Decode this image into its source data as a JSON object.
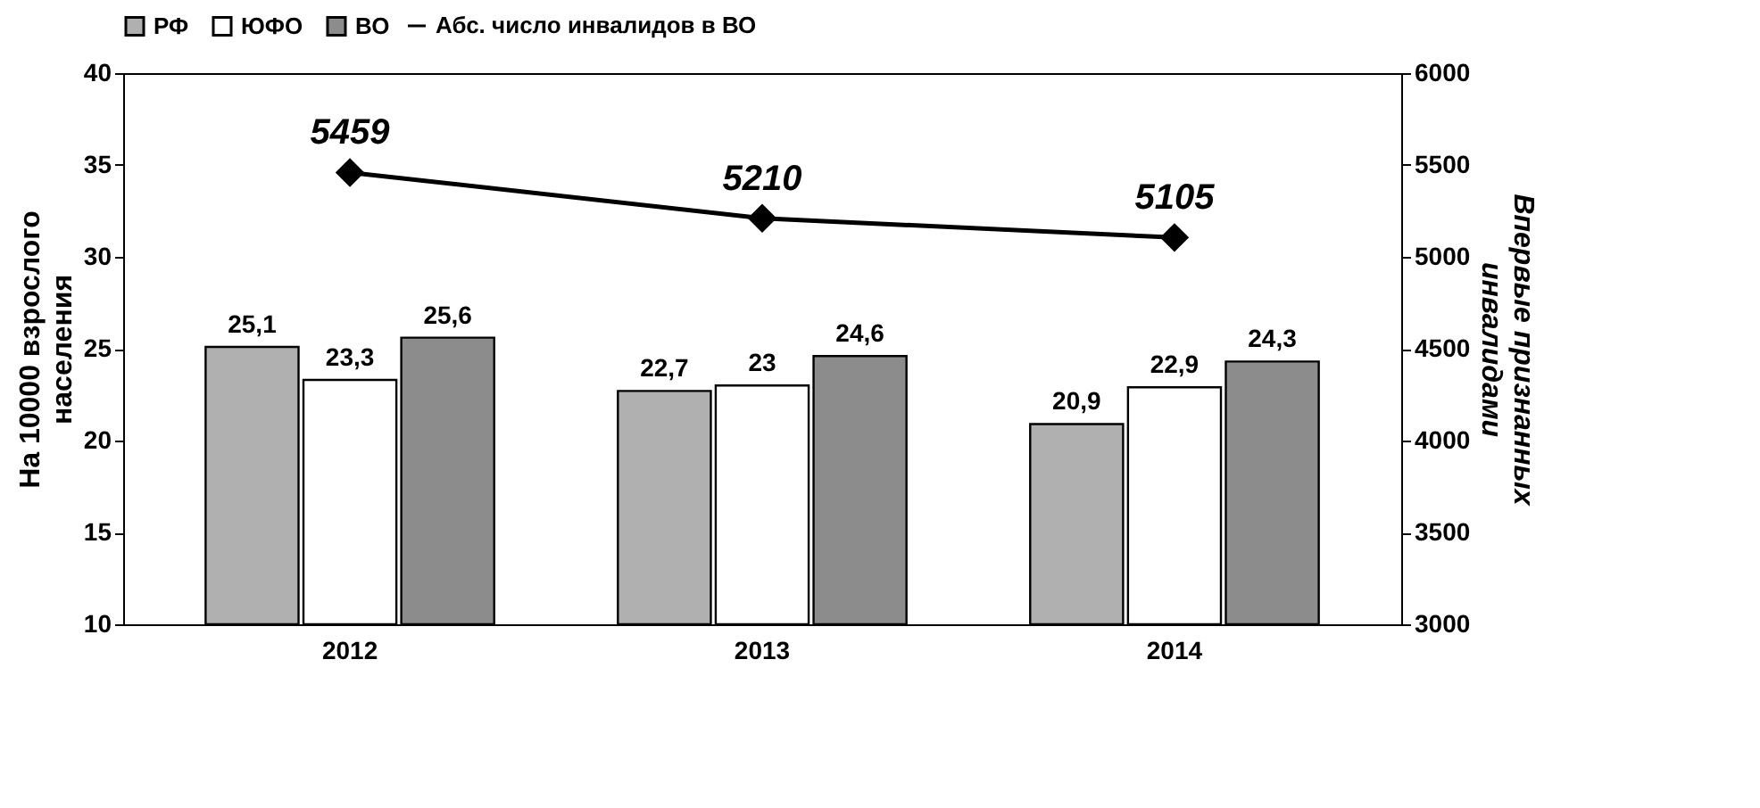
{
  "chart_data": {
    "type": "bar",
    "categories": [
      "2012",
      "2013",
      "2014"
    ],
    "ylabel": "На 10000 взрослого населения",
    "y2label": "Впервые признанных инвалидами",
    "ylim": [
      10,
      40
    ],
    "yticks": [
      10,
      15,
      20,
      25,
      30,
      35,
      40
    ],
    "y2lim": [
      3000,
      6000
    ],
    "y2ticks": [
      3000,
      3500,
      4000,
      4500,
      5000,
      5500,
      6000
    ],
    "legend": "top",
    "grid": false,
    "series": [
      {
        "name": "РФ",
        "color": "#b0b0b0",
        "values": [
          25.1,
          22.7,
          20.9
        ],
        "value_labels": [
          "25,1",
          "22,7",
          "20,9"
        ]
      },
      {
        "name": "ЮФО",
        "color": "#ffffff",
        "values": [
          23.3,
          23,
          22.9
        ],
        "value_labels": [
          "23,3",
          "23",
          "22,9"
        ]
      },
      {
        "name": "ВО",
        "color": "#8c8c8c",
        "values": [
          25.6,
          24.6,
          24.3
        ],
        "value_labels": [
          "25,6",
          "24,6",
          "24,3"
        ]
      },
      {
        "name": "Абс. число инвалидов в ВО",
        "type": "line",
        "axis": "y2",
        "color": "#000000",
        "marker": "diamond",
        "values": [
          5459,
          5210,
          5105
        ],
        "value_labels": [
          "5459",
          "5210",
          "5105"
        ]
      }
    ]
  }
}
